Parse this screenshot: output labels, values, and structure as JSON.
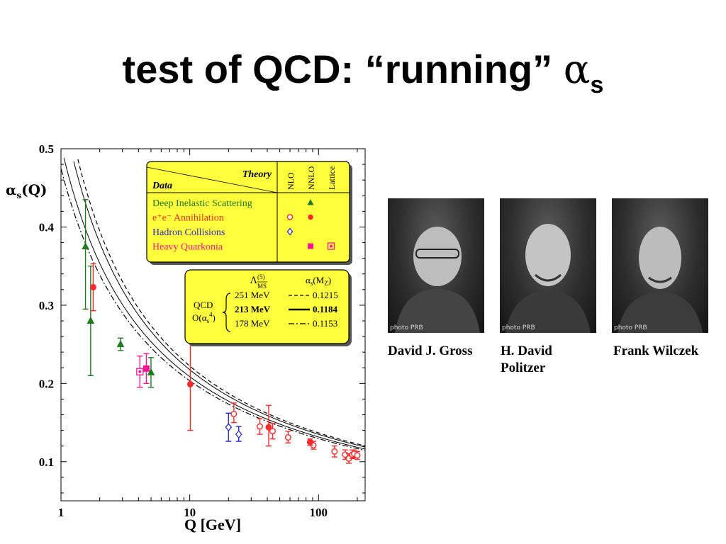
{
  "slide": {
    "title": "test of QCD: “running” ",
    "title_symbol": "α",
    "title_subscript": "s"
  },
  "chart_data": {
    "type": "scatter",
    "ylabel": "αs(Q)",
    "xlabel": "Q [GeV]",
    "x_scale": "log",
    "xlim": [
      1,
      230
    ],
    "ylim": [
      0.05,
      0.5
    ],
    "x_ticks": [
      {
        "value": 1,
        "label": "1"
      },
      {
        "value": 10,
        "label": "10"
      },
      {
        "value": 100,
        "label": "100"
      }
    ],
    "y_ticks": [
      {
        "value": 0.1,
        "label": "0.1"
      },
      {
        "value": 0.2,
        "label": "0.2"
      },
      {
        "value": 0.3,
        "label": "0.3"
      },
      {
        "value": 0.4,
        "label": "0.4"
      },
      {
        "value": 0.5,
        "label": "0.5"
      }
    ],
    "grid": false,
    "legend": {
      "header_theory": "Theory",
      "header_data": "Data",
      "columns": [
        "NLO",
        "NNLO",
        "Lattice"
      ],
      "rows": [
        {
          "label": "Deep Inelastic Scattering",
          "color": "#1f7a1f",
          "nlo": "",
          "nnlo": "triangle",
          "lattice": ""
        },
        {
          "label": "e⁺e⁻ Annihilation",
          "color": "#ff2a2a",
          "nlo": "open-circle",
          "nnlo": "filled-circle",
          "lattice": ""
        },
        {
          "label": "Hadron Collisions",
          "color": "#2b2bcc",
          "nlo": "open-diamond",
          "nnlo": "",
          "lattice": ""
        },
        {
          "label": "Heavy Quarkonia",
          "color": "#ff1493",
          "nlo": "",
          "nnlo": "filled-square",
          "lattice": "boxed-square"
        }
      ]
    },
    "fit_box": {
      "col1_header": "Λ(5)MS",
      "col2_header": "αs(MZ)",
      "group_label_1": "QCD",
      "group_label_2": "O(αs⁴)",
      "curves": [
        {
          "lambda": "251 MeV",
          "alpha_mz": "0.1215",
          "style": "dashed",
          "bold": false
        },
        {
          "lambda": "213 MeV",
          "alpha_mz": "0.1184",
          "style": "solid",
          "bold": true
        },
        {
          "lambda": "178 MeV",
          "alpha_mz": "0.1153",
          "style": "dash-dot",
          "bold": false
        }
      ]
    },
    "series": [
      {
        "name": "Deep Inelastic Scattering",
        "marker": "triangle",
        "filled": true,
        "color": "#1f7a1f",
        "points": [
          {
            "x": 1.55,
            "y": 0.375,
            "lo": 0.295,
            "hi": 0.435
          },
          {
            "x": 1.7,
            "y": 0.28,
            "lo": 0.21,
            "hi": 0.35
          },
          {
            "x": 2.9,
            "y": 0.25,
            "lo": 0.242,
            "hi": 0.258
          },
          {
            "x": 5.0,
            "y": 0.214,
            "lo": 0.195,
            "hi": 0.233
          }
        ]
      },
      {
        "name": "e⁺e⁻ Annihilation (NLO)",
        "marker": "circle",
        "filled": false,
        "color": "#ff2a2a",
        "points": [
          {
            "x": 22,
            "y": 0.161,
            "lo": 0.15,
            "hi": 0.175
          },
          {
            "x": 35,
            "y": 0.145,
            "lo": 0.135,
            "hi": 0.155
          },
          {
            "x": 44,
            "y": 0.139,
            "lo": 0.129,
            "hi": 0.149
          },
          {
            "x": 58,
            "y": 0.131,
            "lo": 0.124,
            "hi": 0.139
          },
          {
            "x": 91.2,
            "y": 0.121,
            "lo": 0.116,
            "hi": 0.126
          },
          {
            "x": 133,
            "y": 0.113,
            "lo": 0.106,
            "hi": 0.12
          },
          {
            "x": 161,
            "y": 0.109,
            "lo": 0.103,
            "hi": 0.115
          },
          {
            "x": 172,
            "y": 0.104,
            "lo": 0.098,
            "hi": 0.11
          },
          {
            "x": 183,
            "y": 0.109,
            "lo": 0.104,
            "hi": 0.115
          },
          {
            "x": 189,
            "y": 0.11,
            "lo": 0.105,
            "hi": 0.115
          },
          {
            "x": 200,
            "y": 0.108,
            "lo": 0.103,
            "hi": 0.113
          }
        ]
      },
      {
        "name": "e⁺e⁻ Annihilation (NNLO)",
        "marker": "circle",
        "filled": true,
        "color": "#ff2a2a",
        "points": [
          {
            "x": 1.78,
            "y": 0.323,
            "lo": 0.293,
            "hi": 0.353
          },
          {
            "x": 10.1,
            "y": 0.199,
            "lo": 0.14,
            "hi": 0.26
          },
          {
            "x": 41,
            "y": 0.144,
            "lo": 0.12,
            "hi": 0.172
          },
          {
            "x": 86,
            "y": 0.125,
            "lo": 0.121,
            "hi": 0.129
          }
        ]
      },
      {
        "name": "Hadron Collisions",
        "marker": "diamond",
        "filled": false,
        "color": "#2b2bcc",
        "points": [
          {
            "x": 20,
            "y": 0.144,
            "lo": 0.126,
            "hi": 0.162
          },
          {
            "x": 24,
            "y": 0.135,
            "lo": 0.126,
            "hi": 0.145
          }
        ]
      },
      {
        "name": "Heavy Quarkonia (NNLO)",
        "marker": "square",
        "filled": true,
        "color": "#ff1493",
        "points": [
          {
            "x": 4.6,
            "y": 0.219,
            "lo": 0.2,
            "hi": 0.238
          }
        ]
      },
      {
        "name": "Heavy Quarkonia (Lattice)",
        "marker": "boxed-square",
        "filled": false,
        "color": "#ff1493",
        "points": [
          {
            "x": 4.1,
            "y": 0.215,
            "lo": 0.195,
            "hi": 0.235
          }
        ]
      }
    ],
    "curves": [
      {
        "lambda_gev": 0.251,
        "style": "dashed",
        "width": 1.2
      },
      {
        "lambda_gev": 0.231,
        "style": "solid",
        "width": 1.0
      },
      {
        "lambda_gev": 0.197,
        "style": "solid",
        "width": 1.0
      },
      {
        "lambda_gev": 0.178,
        "style": "dash-dot",
        "width": 1.2
      }
    ]
  },
  "photos": [
    {
      "name": "David J. Gross",
      "caption_line1": "David J. Gross",
      "caption_line2": "",
      "credit": "photo PRB"
    },
    {
      "name": "H. David Politzer",
      "caption_line1": "H. David",
      "caption_line2": "Politzer",
      "credit": "photo PRB"
    },
    {
      "name": "Frank Wilczek",
      "caption_line1": "Frank Wilczek",
      "caption_line2": "",
      "credit": "photo PRB"
    }
  ]
}
